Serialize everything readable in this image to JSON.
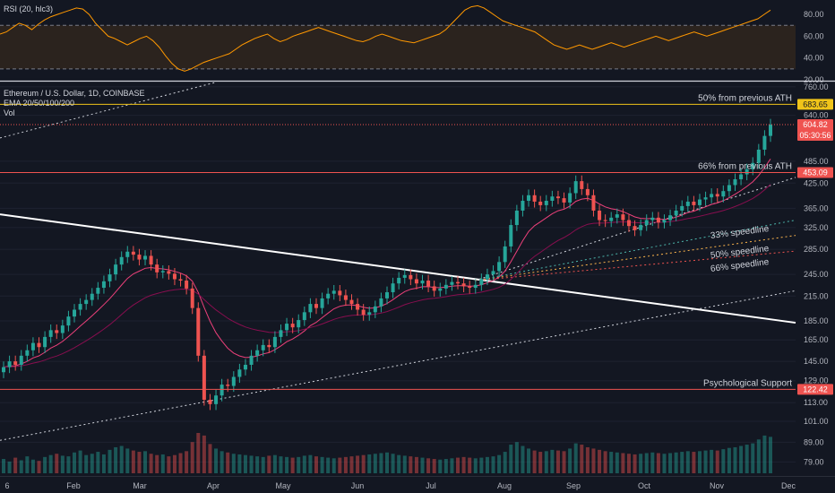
{
  "rsi_title": "RSI (20, hlc3)",
  "header": {
    "symbol": "Ethereum / U.S. Dollar, 1D, COINBASE",
    "ema": "EMA 20/50/100/200",
    "vol": "Vol"
  },
  "colors": {
    "up": "#26a69a",
    "down": "#ef5350",
    "rsi": "#ff9800",
    "ema_fast": "#ec407a",
    "ema_slow": "#880e4f",
    "trend": "#ffffff",
    "level": "#ef5350",
    "ath": "#f0c419"
  },
  "chart_data": [
    {
      "type": "line",
      "panel": "rsi",
      "title": "RSI (20, hlc3)",
      "y_ticks": [
        "80.00",
        "60.00",
        "40.00",
        "20.00"
      ],
      "ylim": [
        20,
        90
      ],
      "bands": [
        70,
        30
      ],
      "series": [
        {
          "values": [
            62,
            64,
            68,
            72,
            70,
            66,
            71,
            75,
            78,
            80,
            82,
            84,
            86,
            85,
            80,
            72,
            66,
            60,
            58,
            55,
            52,
            55,
            58,
            60,
            56,
            50,
            42,
            35,
            30,
            28,
            30,
            33,
            36,
            38,
            40,
            42,
            44,
            48,
            52,
            55,
            58,
            60,
            62,
            58,
            55,
            57,
            60,
            62,
            64,
            66,
            68,
            66,
            64,
            62,
            60,
            58,
            56,
            55,
            57,
            60,
            62,
            60,
            58,
            56,
            55,
            54,
            56,
            58,
            60,
            62,
            66,
            72,
            78,
            84,
            87,
            88,
            86,
            82,
            78,
            74,
            72,
            70,
            68,
            66,
            64,
            60,
            56,
            52,
            50,
            48,
            50,
            52,
            50,
            48,
            50,
            52,
            54,
            52,
            50,
            52,
            54,
            56,
            58,
            60,
            58,
            56,
            58,
            60,
            62,
            64,
            62,
            60,
            62,
            64,
            66,
            68,
            70,
            72,
            74,
            76,
            80,
            84
          ]
        }
      ]
    },
    {
      "type": "candlestick",
      "panel": "price",
      "title": "Ethereum / U.S. Dollar, 1D, COINBASE",
      "x_ticks": [
        "6",
        "Feb",
        "Mar",
        "Apr",
        "May",
        "Jun",
        "Jul",
        "Aug",
        "Sep",
        "Oct",
        "Nov",
        "Dec"
      ],
      "y_ticks": [
        "760.00",
        "640.00",
        "485.00",
        "425.00",
        "365.00",
        "325.00",
        "285.00",
        "245.00",
        "215.00",
        "185.00",
        "165.00",
        "145.00",
        "129.00",
        "113.00",
        "101.00",
        "89.00",
        "79.00"
      ],
      "y_scale": "log",
      "ylim": [
        73,
        780
      ],
      "closes": [
        140,
        145,
        142,
        150,
        155,
        162,
        158,
        168,
        175,
        172,
        180,
        190,
        198,
        205,
        210,
        218,
        226,
        235,
        245,
        260,
        272,
        281,
        276,
        268,
        274,
        260,
        248,
        250,
        246,
        238,
        236,
        225,
        200,
        150,
        115,
        112,
        118,
        126,
        125,
        132,
        138,
        142,
        150,
        155,
        160,
        158,
        168,
        175,
        182,
        178,
        186,
        195,
        205,
        200,
        212,
        218,
        222,
        216,
        210,
        205,
        198,
        192,
        195,
        202,
        212,
        220,
        232,
        240,
        244,
        238,
        232,
        236,
        228,
        222,
        225,
        230,
        234,
        232,
        228,
        226,
        230,
        238,
        245,
        250,
        264,
        290,
        330,
        360,
        382,
        395,
        380,
        372,
        382,
        392,
        388,
        378,
        400,
        430,
        410,
        395,
        360,
        340,
        338,
        345,
        352,
        340,
        328,
        320,
        330,
        340,
        345,
        335,
        340,
        350,
        360,
        370,
        380,
        372,
        385,
        390,
        398,
        392,
        405,
        420,
        435,
        448,
        462,
        480,
        520,
        565,
        605
      ],
      "volumes": [
        22,
        18,
        24,
        20,
        26,
        21,
        19,
        25,
        28,
        30,
        27,
        26,
        32,
        35,
        28,
        30,
        33,
        29,
        36,
        40,
        42,
        38,
        35,
        33,
        34,
        30,
        28,
        29,
        26,
        28,
        31,
        34,
        48,
        62,
        58,
        45,
        38,
        34,
        32,
        30,
        29,
        28,
        27,
        26,
        25,
        27,
        28,
        26,
        25,
        24,
        25,
        27,
        28,
        26,
        25,
        24,
        23,
        24,
        25,
        26,
        27,
        28,
        29,
        30,
        31,
        32,
        30,
        28,
        27,
        26,
        25,
        24,
        23,
        22,
        21,
        22,
        23,
        24,
        25,
        24,
        23,
        24,
        25,
        26,
        28,
        33,
        44,
        48,
        42,
        38,
        35,
        33,
        34,
        36,
        35,
        34,
        38,
        46,
        44,
        40,
        38,
        36,
        34,
        33,
        32,
        31,
        30,
        29,
        30,
        31,
        32,
        31,
        30,
        31,
        32,
        33,
        34,
        33,
        34,
        35,
        36,
        35,
        37,
        39,
        40,
        42,
        44,
        46,
        52,
        58,
        56
      ],
      "annotations": [
        {
          "label": "50% from previous ATH",
          "tag": "683.65",
          "value": 683.65
        },
        {
          "label": "66% from previous ATH",
          "tag": "453.09",
          "value": 453.09
        },
        {
          "label": "Psychological Support",
          "tag": "122.42",
          "value": 122.42
        }
      ],
      "last_price": "604.82",
      "countdown": "05:30:56",
      "speedlines": [
        "33% speedline",
        "50% speedline",
        "66% speedline"
      ]
    }
  ]
}
